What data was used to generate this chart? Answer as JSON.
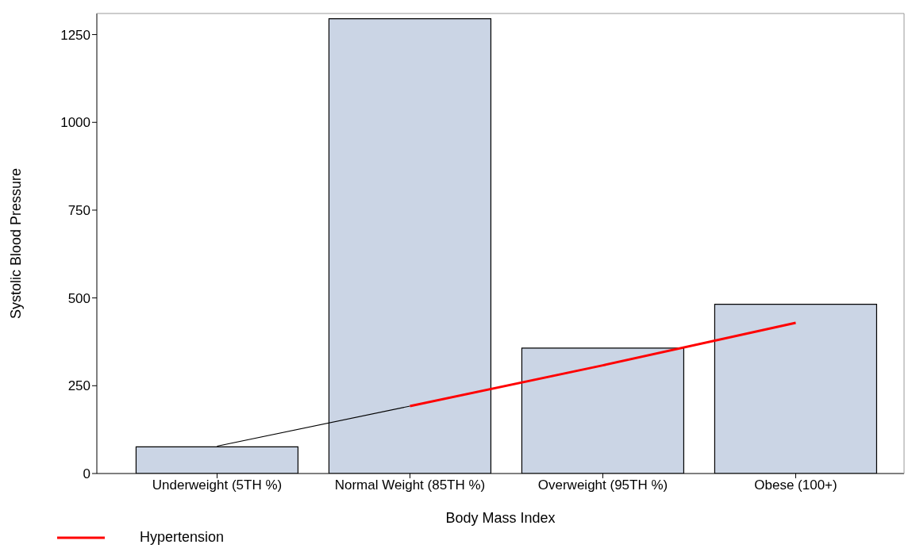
{
  "chart_data": {
    "type": "bar",
    "xlabel": "Body Mass Index",
    "ylabel": "Systolic Blood Pressure",
    "categories": [
      "Underweight (5TH %)",
      "Normal Weight (85TH %)",
      "Overweight (95TH %)",
      "Obese (100+)"
    ],
    "values": [
      76,
      1295,
      357,
      482
    ],
    "color": "#cbd5e5",
    "ylim": [
      0,
      1310
    ],
    "yticks": [
      0,
      250,
      500,
      750,
      1000,
      1250
    ],
    "series": [
      {
        "type": "line",
        "color": "#000000",
        "x": [
          "Underweight (5TH %)",
          "Normal Weight (85TH %)"
        ],
        "values": [
          78,
          192
        ]
      },
      {
        "type": "line",
        "name": "Hypertension",
        "color": "#ff0000",
        "x": [
          "Normal Weight (85TH %)",
          "Overweight (95TH %)",
          "Obese (100+)"
        ],
        "values": [
          192,
          308,
          429
        ]
      }
    ],
    "grid": false,
    "legend": "bottom left"
  }
}
